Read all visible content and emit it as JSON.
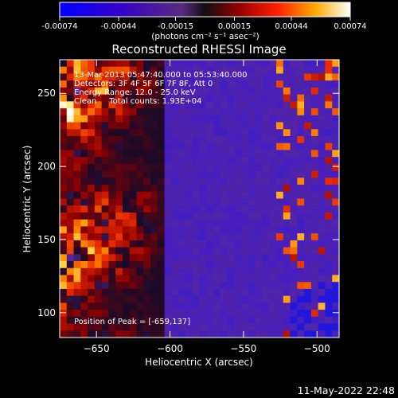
{
  "chart_data": {
    "type": "heatmap",
    "title": "Reconstructed RHESSI Image",
    "xlabel": "Heliocentric X (arcsec)",
    "ylabel": "Heliocentric Y (arcsec)",
    "xlim": [
      -675,
      -485
    ],
    "ylim": [
      83,
      273
    ],
    "x_ticks": [
      -650,
      -600,
      -550,
      -500
    ],
    "y_ticks": [
      100,
      150,
      200,
      250
    ],
    "colorbar": {
      "ticks": [
        "-0.00074",
        "-0.00044",
        "-0.00015",
        "0.00015",
        "0.00044",
        "0.00074"
      ],
      "units": "(photons cm⁻² s⁻¹ asec⁻²)",
      "min": -0.00074,
      "max": 0.00074
    },
    "annotations": {
      "time": "13-Mar-2013 05:47:40.000 to 05:53:40.000",
      "detectors": "Detectors: 3F 4F 5F 6F 7F 8F, Att 0",
      "energy": "Energy Range: 12.0 - 25.0 keV",
      "clean": "Clean     Total counts: 1.93E+04",
      "peak": "Position of Peak = [-659,137]"
    },
    "peak_position": [
      -659,
      137
    ],
    "footer_date": "11-May-2022 22:48"
  }
}
